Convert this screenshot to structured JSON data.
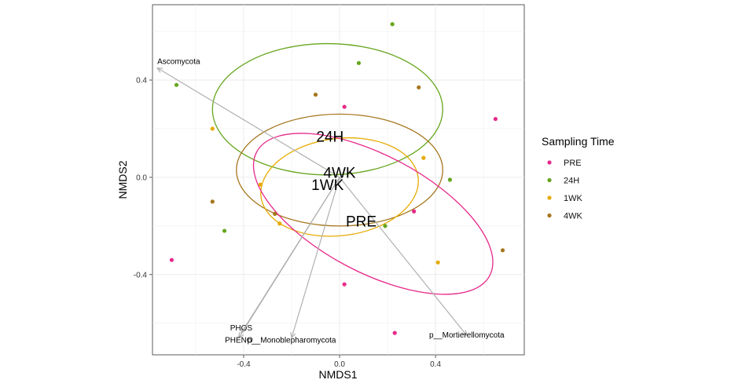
{
  "chart_data": {
    "type": "scatter",
    "title": "",
    "xlabel": "NMDS1",
    "ylabel": "NMDS2",
    "xlim": [
      -0.78,
      0.77
    ],
    "ylim": [
      -0.73,
      0.71
    ],
    "xticks": [
      -0.4,
      0.0,
      0.4
    ],
    "yticks": [
      -0.4,
      0.0,
      0.4
    ],
    "xtick_labels": [
      "-0.4",
      "0.0",
      "0.4"
    ],
    "ytick_labels": [
      "-0.4",
      "0.0",
      "0.4"
    ],
    "grid": true,
    "legend_title": "Sampling Time",
    "legend_position": "right",
    "series": [
      {
        "name": "PRE",
        "color": "#E7298A",
        "points": [
          [
            0.02,
            0.29
          ],
          [
            0.65,
            0.24
          ],
          [
            0.31,
            -0.14
          ],
          [
            -0.7,
            -0.34
          ],
          [
            0.02,
            -0.44
          ],
          [
            0.23,
            -0.64
          ]
        ]
      },
      {
        "name": "24H",
        "color": "#66A61E",
        "points": [
          [
            0.22,
            0.63
          ],
          [
            0.08,
            0.47
          ],
          [
            -0.68,
            0.38
          ],
          [
            0.46,
            -0.01
          ],
          [
            -0.48,
            -0.22
          ],
          [
            0.19,
            -0.2
          ]
        ]
      },
      {
        "name": "1WK",
        "color": "#E6AB02",
        "points": [
          [
            -0.53,
            0.2
          ],
          [
            -0.33,
            -0.03
          ],
          [
            0.35,
            0.08
          ],
          [
            -0.25,
            -0.19
          ],
          [
            0.41,
            -0.35
          ]
        ]
      },
      {
        "name": "4WK",
        "color": "#A6761D",
        "points": [
          [
            -0.1,
            0.34
          ],
          [
            0.33,
            0.37
          ],
          [
            -0.53,
            -0.1
          ],
          [
            -0.27,
            -0.15
          ],
          [
            0.68,
            -0.3
          ]
        ]
      }
    ],
    "group_labels": [
      {
        "text": "24H",
        "x": -0.04,
        "y": 0.17
      },
      {
        "text": "4WK",
        "x": 0.0,
        "y": 0.02
      },
      {
        "text": "1WK",
        "x": -0.05,
        "y": -0.03
      },
      {
        "text": "PRE",
        "x": 0.09,
        "y": -0.18
      }
    ],
    "ellipses": [
      {
        "group": "24H",
        "cx": -0.05,
        "cy": 0.28,
        "rx": 0.48,
        "ry": 0.27,
        "angle": 0
      },
      {
        "group": "4WK",
        "cx": 0.0,
        "cy": 0.03,
        "rx": 0.43,
        "ry": 0.23,
        "angle": 0
      },
      {
        "group": "1WK",
        "cx": 0.0,
        "cy": -0.04,
        "rx": 0.33,
        "ry": 0.2,
        "angle": -7
      },
      {
        "group": "PRE",
        "cx": 0.14,
        "cy": -0.15,
        "rx": 0.55,
        "ry": 0.24,
        "angle": 28
      }
    ],
    "vectors_color": "#B0B0B0",
    "vectors": [
      {
        "label": "Ascomycota",
        "x": -0.76,
        "y": 0.45
      },
      {
        "label": "PHOS",
        "x": -0.41,
        "y": -0.64
      },
      {
        "label": "PHENO",
        "x": -0.42,
        "y": -0.66
      },
      {
        "label": "p__Monoblepharomycota",
        "x": -0.2,
        "y": -0.66
      },
      {
        "label": "p__Mortierellomycota",
        "x": 0.53,
        "y": -0.65
      }
    ]
  }
}
